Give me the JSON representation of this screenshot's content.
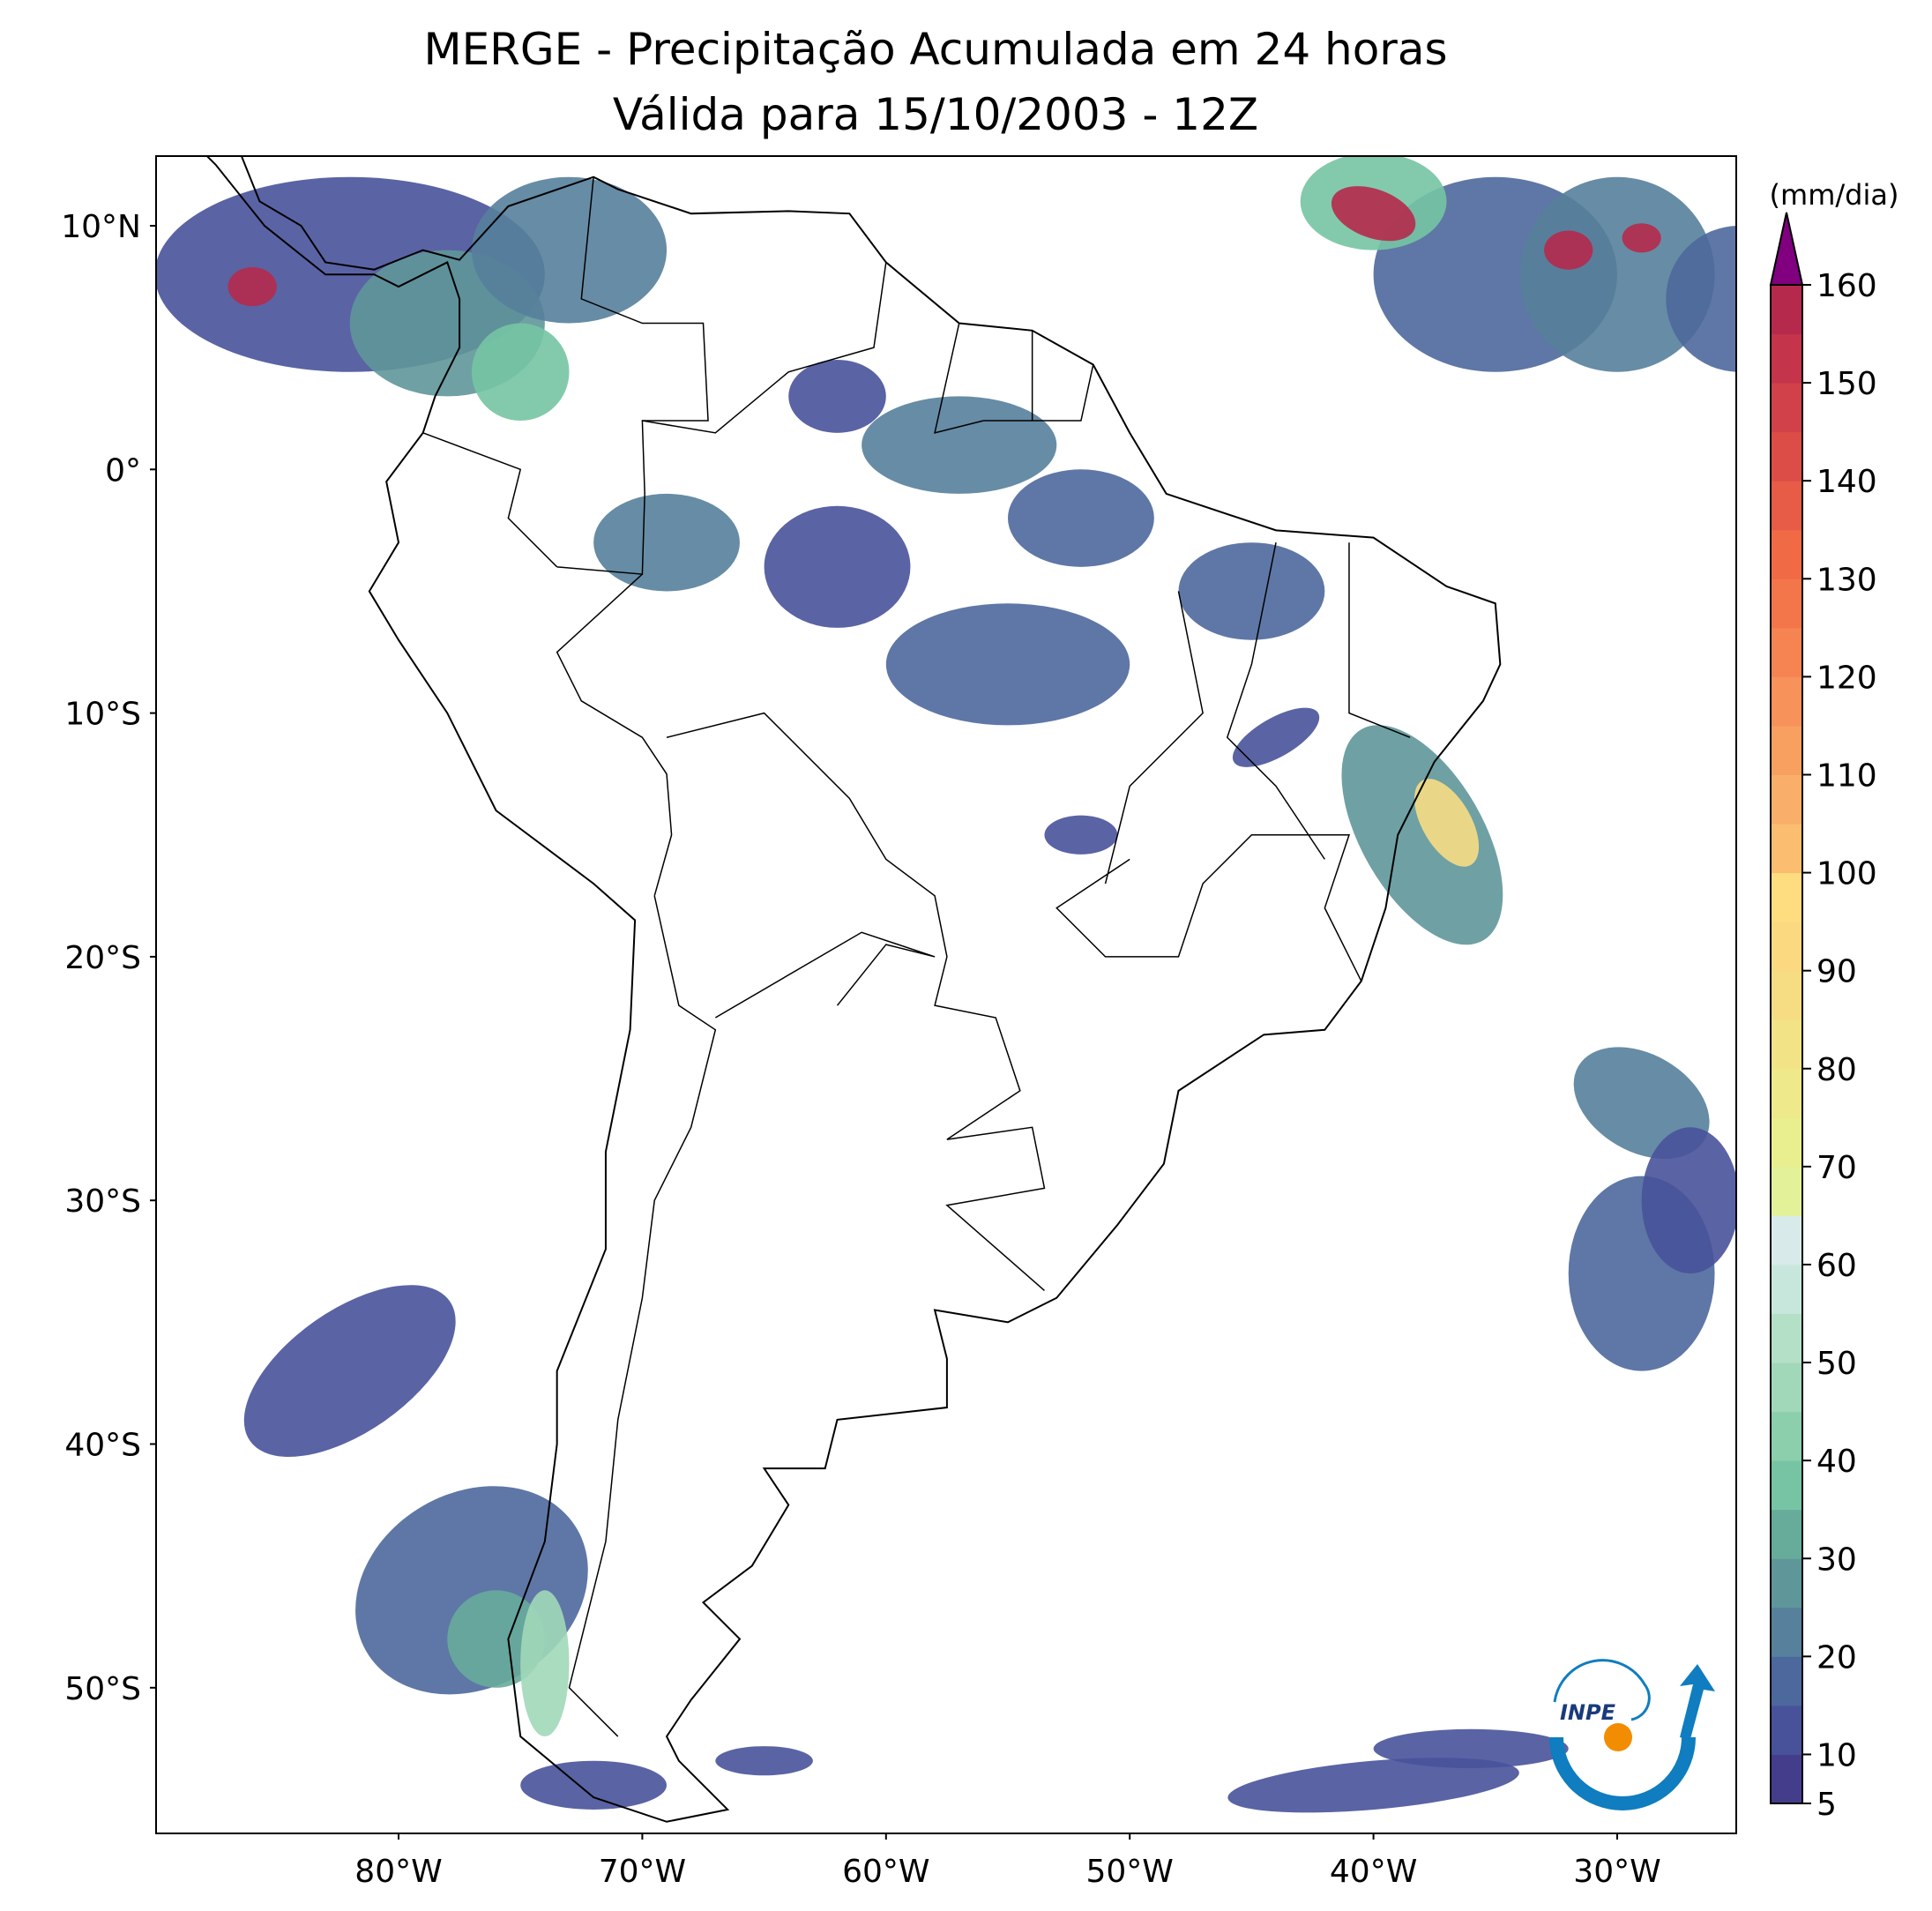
{
  "title": {
    "line1": "MERGE - Precipitação Acumulada em 24 horas",
    "line2": "Válida para 15/10/2003 - 12Z"
  },
  "map": {
    "lon_range": [
      -90,
      -25
    ],
    "lat_range": [
      -56,
      13
    ],
    "lat_ticks": [
      {
        "value": 10,
        "label": "10°N"
      },
      {
        "value": 0,
        "label": "0°"
      },
      {
        "value": -10,
        "label": "10°S"
      },
      {
        "value": -20,
        "label": "20°S"
      },
      {
        "value": -30,
        "label": "30°S"
      },
      {
        "value": -40,
        "label": "40°S"
      },
      {
        "value": -50,
        "label": "50°S"
      }
    ],
    "lon_ticks": [
      {
        "value": -80,
        "label": "80°W"
      },
      {
        "value": -70,
        "label": "70°W"
      },
      {
        "value": -60,
        "label": "60°W"
      },
      {
        "value": -50,
        "label": "50°W"
      },
      {
        "value": -40,
        "label": "40°W"
      },
      {
        "value": -30,
        "label": "30°W"
      }
    ]
  },
  "colorbar": {
    "unit": "(mm/dia)",
    "levels": [
      5,
      10,
      15,
      20,
      25,
      30,
      35,
      40,
      45,
      50,
      55,
      60,
      65,
      70,
      75,
      80,
      85,
      90,
      95,
      100,
      105,
      110,
      115,
      120,
      125,
      130,
      135,
      140,
      145,
      150,
      155,
      160
    ],
    "tick_labels": [
      "5",
      "10",
      "20",
      "30",
      "40",
      "50",
      "60",
      "70",
      "80",
      "90",
      "100",
      "110",
      "120",
      "130",
      "140",
      "150",
      "160"
    ],
    "colors": [
      "#443d8c",
      "#48529a",
      "#4d689c",
      "#56809b",
      "#5f969a",
      "#67ab9b",
      "#76c4a4",
      "#8bcfad",
      "#a1d8b9",
      "#b4e0c8",
      "#c7e7dd",
      "#d8ebea",
      "#e3f299",
      "#e9ef8f",
      "#eee98a",
      "#f2e387",
      "#f6dd84",
      "#fbd980",
      "#fedc80",
      "#fbbe70",
      "#f9af69",
      "#f7a060",
      "#f6925a",
      "#f58452",
      "#f3764a",
      "#f06a45",
      "#e65c47",
      "#dc4d48",
      "#d0414a",
      "#c4354b",
      "#b52a4c"
    ],
    "extend_color": "#800080"
  },
  "logo": {
    "text": "INPE"
  }
}
